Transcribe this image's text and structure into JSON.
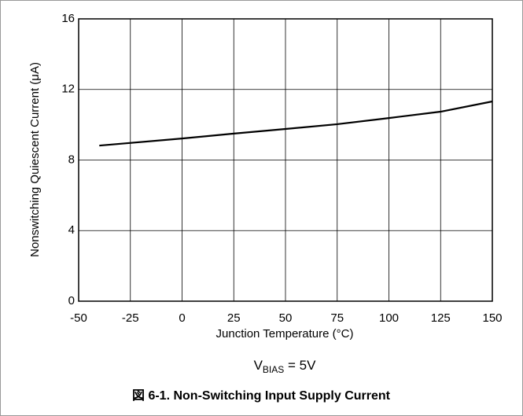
{
  "chart_data": {
    "type": "line",
    "x_label": "Junction Temperature (°C)",
    "y_label": "Nonswitching Quiescent Current (μA)",
    "annotation": {
      "main": "V",
      "sub": "BIAS",
      "rest": " = 5V"
    },
    "caption": "図 6-1. Non-Switching Input Supply Current",
    "x": [
      -40,
      0,
      25,
      50,
      75,
      100,
      125,
      150
    ],
    "series": [
      {
        "color": "#000000",
        "values": [
          8.82,
          9.22,
          9.5,
          9.76,
          10.03,
          10.38,
          10.74,
          11.32
        ]
      }
    ],
    "xlim": [
      -50,
      150
    ],
    "xticks": [
      -50,
      -25,
      0,
      25,
      50,
      75,
      100,
      125,
      150
    ],
    "ylim": [
      0,
      16
    ],
    "yticks": [
      0,
      4,
      8,
      12,
      16
    ],
    "grid": true
  }
}
